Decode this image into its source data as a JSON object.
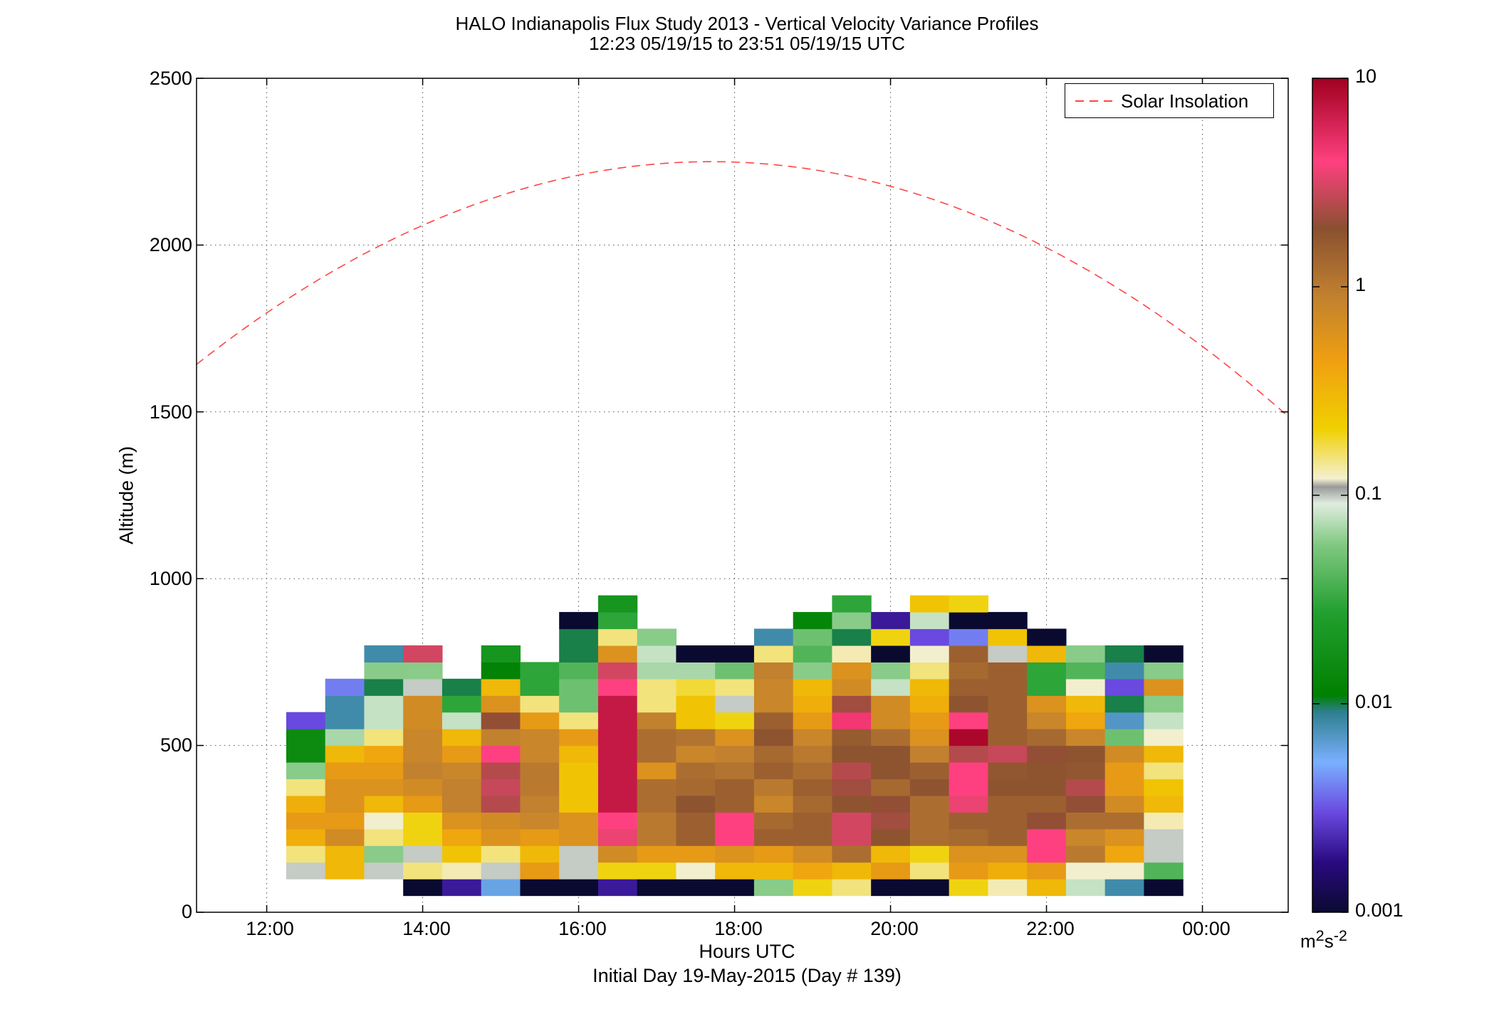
{
  "chart_data": {
    "type": "heatmap",
    "title": "HALO Indianapolis Flux Study 2013 - Vertical Velocity Variance Profiles",
    "subtitle": "12:23 05/19/15 to 23:51 05/19/15  UTC",
    "xlabel": "Hours UTC",
    "xlabel2": "Initial Day 19-May-2015 (Day # 139)",
    "ylabel": "Altitude (m)",
    "xlim": [
      11.1,
      25.1
    ],
    "ylim": [
      0,
      2500
    ],
    "grid": true,
    "x_ticks": [
      12,
      14,
      16,
      18,
      20,
      22,
      24
    ],
    "x_tick_labels": [
      "12:00",
      "14:00",
      "16:00",
      "18:00",
      "20:00",
      "22:00",
      "00:00"
    ],
    "y_ticks": [
      0,
      500,
      1000,
      1500,
      2000,
      2500
    ],
    "y_tick_labels": [
      "0",
      "500",
      "1000",
      "1500",
      "2000",
      "2500"
    ],
    "colorbar": {
      "scale": "log",
      "range": [
        0.001,
        10
      ],
      "tick_values": [
        0.001,
        0.01,
        0.1,
        1,
        10
      ],
      "tick_labels": [
        "0.001",
        "0.01",
        "0.1",
        "1",
        "10"
      ],
      "unit_base": "m",
      "unit_sup1": "2",
      "unit_mid": "s",
      "unit_sup2": "-2"
    },
    "legend": {
      "label": "Solar Insolation",
      "position": "top-right",
      "color": "#ff4444",
      "style": "dashed"
    },
    "solar_insolation": {
      "peak_hour": 17.7,
      "peak_altitude": 2250,
      "zero_hours": [
        5.0,
        30.4
      ]
    },
    "bin_hours": [
      12.5,
      13.0,
      13.5,
      14.0,
      14.5,
      15.0,
      15.5,
      16.0,
      16.5,
      17.0,
      17.5,
      18.0,
      18.5,
      19.0,
      19.5,
      20.0,
      20.5,
      21.0,
      21.5,
      22.0,
      22.5,
      23.0,
      23.5
    ],
    "bin_width_hours": 0.5,
    "bin_start_altitude": 50,
    "bin_height_altitude": 50,
    "variance_columns": [
      [
        null,
        0.1,
        0.15,
        0.35,
        0.5,
        0.35,
        0.15,
        0.06,
        0.015,
        0.015,
        0.003
      ],
      [
        null,
        0.3,
        0.3,
        0.7,
        0.5,
        0.6,
        0.6,
        0.5,
        0.3,
        0.07,
        0.008,
        0.008,
        0.004
      ],
      [
        null,
        0.1,
        0.06,
        0.15,
        0.12,
        0.3,
        0.6,
        0.5,
        0.4,
        0.15,
        0.08,
        0.08,
        0.01,
        0.06,
        0.008
      ],
      [
        0.001,
        0.15,
        0.1,
        0.2,
        0.2,
        0.5,
        0.7,
        0.9,
        0.8,
        0.8,
        0.7,
        0.7,
        0.1,
        0.06,
        3
      ],
      [
        0.002,
        0.13,
        0.25,
        0.4,
        0.6,
        0.9,
        0.9,
        0.8,
        0.5,
        0.3,
        0.08,
        0.03,
        0.01
      ],
      [
        0.006,
        0.1,
        0.15,
        0.6,
        0.7,
        2.5,
        2.8,
        2.5,
        4,
        0.9,
        2,
        0.6,
        0.3,
        0.012,
        0.02
      ],
      [
        0.001,
        0.5,
        0.3,
        0.5,
        0.8,
        0.9,
        1,
        1,
        0.8,
        0.8,
        0.5,
        0.15,
        0.03,
        0.03
      ],
      [
        0.001,
        0.1,
        0.1,
        0.6,
        0.6,
        0.25,
        0.25,
        0.25,
        0.3,
        0.5,
        0.15,
        0.05,
        0.05,
        0.04,
        0.01,
        0.01,
        0.001
      ],
      [
        0.002,
        0.2,
        0.7,
        3.5,
        4,
        7,
        7,
        7,
        7,
        7,
        7,
        7,
        4,
        3,
        0.6,
        0.15,
        0.03,
        0.02
      ],
      [
        0.001,
        0.2,
        0.5,
        1,
        1,
        1.2,
        1.2,
        0.6,
        1.2,
        1.2,
        0.9,
        0.15,
        0.15,
        0.07,
        0.08,
        0.06
      ],
      [
        0.001,
        0.12,
        0.5,
        1.5,
        1.5,
        1.8,
        1.3,
        1.2,
        0.8,
        1.1,
        0.25,
        0.25,
        0.18,
        0.07,
        0.001
      ],
      [
        0.001,
        0.3,
        0.6,
        4,
        4,
        1.5,
        1.5,
        1.1,
        0.9,
        0.6,
        0.2,
        0.1,
        0.15,
        0.05,
        0.001
      ],
      [
        0.06,
        0.3,
        0.5,
        1.5,
        1.3,
        0.8,
        1,
        1.5,
        1.3,
        1.8,
        1.5,
        0.8,
        0.8,
        0.9,
        0.15,
        0.008
      ],
      [
        0.2,
        0.4,
        0.7,
        1.5,
        1.5,
        1.3,
        1.5,
        1.2,
        1,
        0.8,
        0.5,
        0.35,
        0.3,
        0.06,
        0.04,
        0.05,
        0.013
      ],
      [
        0.15,
        0.3,
        1.2,
        3,
        3,
        1.8,
        2.2,
        2.5,
        1.8,
        1.6,
        4.5,
        2.2,
        0.7,
        0.6,
        0.13,
        0.01,
        0.06,
        0.03
      ],
      [
        0.001,
        0.5,
        0.3,
        1.8,
        2.2,
        2,
        1.3,
        1.8,
        1.8,
        1.2,
        0.7,
        0.7,
        0.08,
        0.06,
        0.001,
        0.2,
        0.002
      ],
      [
        0.001,
        0.15,
        0.2,
        1.2,
        1.2,
        1.2,
        1.8,
        1.5,
        0.9,
        0.6,
        0.5,
        0.35,
        0.3,
        0.15,
        0.12,
        0.003,
        0.08,
        0.25
      ],
      [
        0.2,
        0.5,
        0.6,
        1.3,
        1.5,
        3.5,
        4,
        4,
        2.5,
        9,
        4,
        1.8,
        1.5,
        1.3,
        1.5,
        0.004,
        0.001,
        0.2
      ],
      [
        0.13,
        0.35,
        0.6,
        1.5,
        1.5,
        1.5,
        1.8,
        1.7,
        2.8,
        1.5,
        1.5,
        1.5,
        1.5,
        1.5,
        0.1,
        0.25,
        0.001
      ],
      [
        0.3,
        0.5,
        4,
        4,
        2,
        1.5,
        1.8,
        1.8,
        2,
        1.3,
        0.8,
        0.6,
        0.03,
        0.03,
        0.3,
        0.001
      ],
      [
        0.08,
        0.12,
        1,
        0.8,
        1.2,
        2,
        2.5,
        1.7,
        1.8,
        0.8,
        0.4,
        0.3,
        0.12,
        0.04,
        0.06
      ],
      [
        0.008,
        0.12,
        0.4,
        0.6,
        1.2,
        0.7,
        0.5,
        0.5,
        0.7,
        0.05,
        0.007,
        0.01,
        0.003,
        0.008,
        0.01
      ],
      [
        0.001,
        0.04,
        0.1,
        0.1,
        0.13,
        0.3,
        0.25,
        0.15,
        0.3,
        0.12,
        0.08,
        0.06,
        0.6,
        0.06,
        0.001
      ]
    ]
  }
}
